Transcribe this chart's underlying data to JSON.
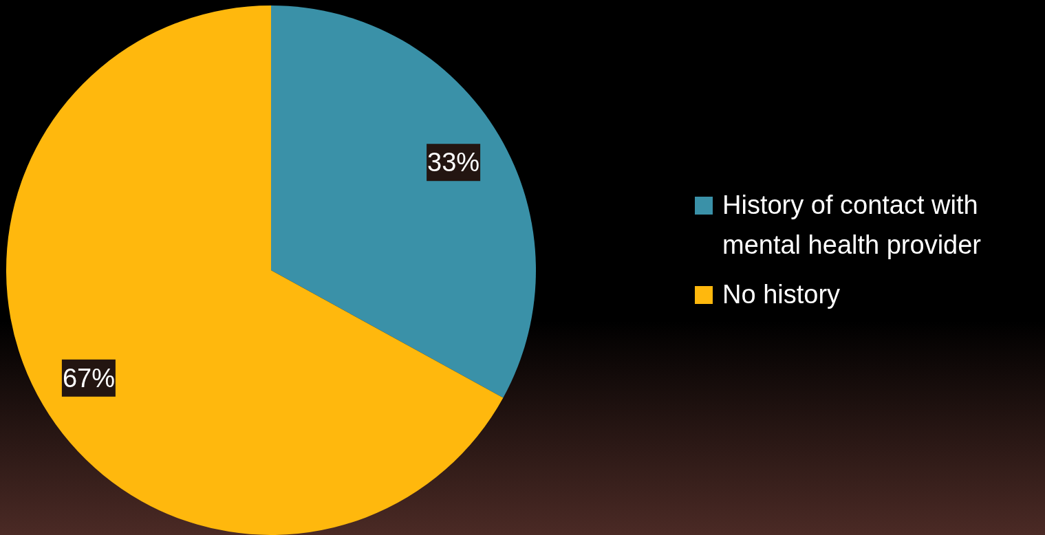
{
  "chart_data": {
    "type": "pie",
    "categories": [
      "History of contact with mental health provider",
      "No history"
    ],
    "values": [
      33,
      67
    ],
    "colors": [
      "#3a91a8",
      "#ffb80d"
    ],
    "value_labels": [
      "33%",
      "67%"
    ],
    "legend": "right"
  }
}
